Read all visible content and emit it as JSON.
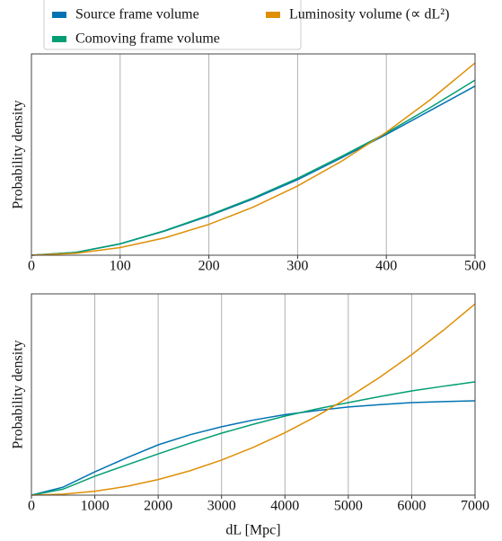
{
  "chart_data": [
    {
      "type": "line",
      "ylabel": "Probability density",
      "x": [
        0,
        50,
        100,
        150,
        200,
        250,
        300,
        350,
        400,
        450,
        500
      ],
      "xlim": [
        0,
        500
      ],
      "xticks": [
        0,
        100,
        200,
        300,
        400,
        500
      ],
      "ylim": [
        0,
        1
      ],
      "grid": "x",
      "legend": "upper center",
      "series": [
        {
          "name": "Source frame volume",
          "color": "#0173b2",
          "values": [
            0,
            0.014,
            0.056,
            0.12,
            0.195,
            0.28,
            0.375,
            0.485,
            0.6,
            0.72,
            0.84
          ]
        },
        {
          "name": "Comoving frame volume",
          "color": "#029e73",
          "values": [
            0,
            0.014,
            0.057,
            0.122,
            0.199,
            0.285,
            0.382,
            0.492,
            0.607,
            0.735,
            0.87
          ]
        },
        {
          "name": "Luminosity volume (∝ dL²)",
          "color": "#de8f05",
          "values": [
            0,
            0.0096,
            0.038,
            0.086,
            0.153,
            0.239,
            0.344,
            0.468,
            0.611,
            0.774,
            0.955
          ]
        }
      ]
    },
    {
      "type": "line",
      "ylabel": "Probability density",
      "xlabel": "dL [Mpc]",
      "x": [
        0,
        500,
        1000,
        1500,
        2000,
        2500,
        3000,
        3500,
        4000,
        4500,
        5000,
        5500,
        6000,
        6500,
        7000
      ],
      "xlim": [
        0,
        7000
      ],
      "xticks": [
        0,
        1000,
        2000,
        3000,
        4000,
        5000,
        6000,
        7000
      ],
      "ylim": [
        0,
        1
      ],
      "grid": "x",
      "series": [
        {
          "color": "#0173b2",
          "values": [
            0,
            0.04,
            0.116,
            0.185,
            0.25,
            0.3,
            0.34,
            0.373,
            0.4,
            0.42,
            0.438,
            0.45,
            0.46,
            0.465,
            0.469
          ]
        },
        {
          "color": "#029e73",
          "values": [
            0,
            0.03,
            0.094,
            0.15,
            0.205,
            0.258,
            0.308,
            0.352,
            0.393,
            0.428,
            0.46,
            0.49,
            0.518,
            0.541,
            0.563
          ]
        },
        {
          "color": "#de8f05",
          "values": [
            0,
            0.0048,
            0.0194,
            0.0436,
            0.0776,
            0.121,
            0.1745,
            0.2375,
            0.3102,
            0.3926,
            0.4847,
            0.5865,
            0.698,
            0.8191,
            0.95
          ]
        }
      ]
    }
  ]
}
